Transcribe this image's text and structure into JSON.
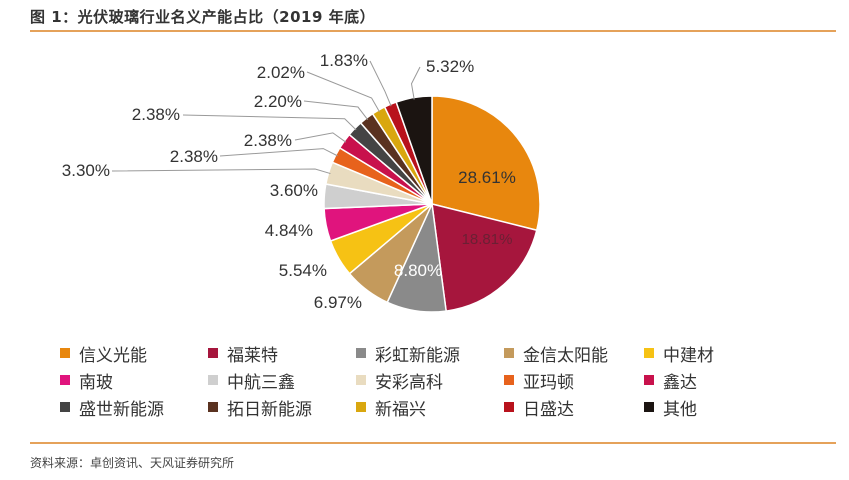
{
  "figure": {
    "title": "图 1：光伏玻璃行业名义产能占比（2019 年底）",
    "source": "资料来源：卓创资讯、天风证券研究所"
  },
  "chart_data": {
    "type": "pie",
    "title": "图 1：光伏玻璃行业名义产能占比（2019 年底）",
    "slices": [
      {
        "name": "信义光能",
        "value": 28.61,
        "label": "28.61%",
        "color": "#e8870e"
      },
      {
        "name": "福莱特",
        "value": 18.81,
        "label": "18.81%",
        "color": "#a6163d"
      },
      {
        "name": "彩虹新能源",
        "value": 8.8,
        "label": "8.80%",
        "color": "#8a8a8a"
      },
      {
        "name": "金信太阳能",
        "value": 6.97,
        "label": "6.97%",
        "color": "#c49a5c"
      },
      {
        "name": "中建材",
        "value": 5.54,
        "label": "5.54%",
        "color": "#f6c214"
      },
      {
        "name": "南玻",
        "value": 4.84,
        "label": "4.84%",
        "color": "#e0147d"
      },
      {
        "name": "中航三鑫",
        "value": 3.6,
        "label": "3.60%",
        "color": "#cfcfcf"
      },
      {
        "name": "安彩高科",
        "value": 3.3,
        "label": "3.30%",
        "color": "#e9dcc0"
      },
      {
        "name": "亚玛顿",
        "value": 2.38,
        "label": "2.38%",
        "color": "#e7621c"
      },
      {
        "name": "鑫达",
        "value": 2.38,
        "label": "2.38%",
        "color": "#c8114c"
      },
      {
        "name": "盛世新能源",
        "value": 2.38,
        "label": "2.38%",
        "color": "#444444"
      },
      {
        "name": "拓日新能源",
        "value": 2.2,
        "label": "2.20%",
        "color": "#5a3220"
      },
      {
        "name": "新福兴",
        "value": 2.02,
        "label": "2.02%",
        "color": "#d9a70f"
      },
      {
        "name": "日盛达",
        "value": 1.83,
        "label": "1.83%",
        "color": "#b8121c"
      },
      {
        "name": "其他",
        "value": 5.32,
        "label": "5.32%",
        "color": "#1b1411"
      }
    ],
    "legend_position": "bottom"
  }
}
